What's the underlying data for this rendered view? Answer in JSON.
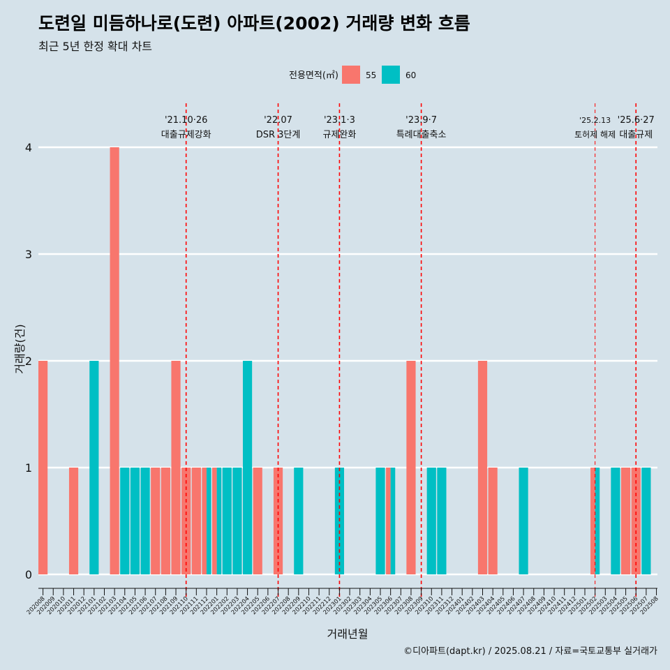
{
  "header": {
    "title": "도련일 미듬하나로(도련) 아파트(2002) 거래량 변화 흐름",
    "subtitle": "최근 5년 한정 확대 차트"
  },
  "footer": {
    "caption": "©디아파트(dapt.kr) / 2025.08.21 / 자료=국토교통부 실거래가"
  },
  "colors": {
    "background": "#d5e2ea",
    "area55": "#f8766d",
    "area60": "#00bfc4",
    "event_line": "#ff0000",
    "grid": "#ffffff"
  },
  "chart_data": {
    "type": "bar",
    "title": "도련일 미듬하나로(도련) 아파트(2002) 거래량 변화 흐름",
    "xlabel": "거래년월",
    "ylabel": "거래량(건)",
    "ylim": [
      0,
      4
    ],
    "yticks": [
      "0",
      "1",
      "2",
      "3",
      "4"
    ],
    "legend": {
      "title": "전용면적(㎡)",
      "position": "top",
      "entries": [
        "55",
        "60"
      ]
    },
    "categories": [
      "202008",
      "202009",
      "202010",
      "202011",
      "202012",
      "202101",
      "202102",
      "202103",
      "202104",
      "202105",
      "202106",
      "202107",
      "202108",
      "202109",
      "202110",
      "202111",
      "202112",
      "202201",
      "202202",
      "202203",
      "202204",
      "202205",
      "202206",
      "202207",
      "202208",
      "202209",
      "202210",
      "202211",
      "202212",
      "202301",
      "202302",
      "202303",
      "202304",
      "202305",
      "202306",
      "202307",
      "202308",
      "202309",
      "202310",
      "202311",
      "202312",
      "202401",
      "202402",
      "202403",
      "202404",
      "202405",
      "202406",
      "202407",
      "202408",
      "202409",
      "202410",
      "202411",
      "202412",
      "202501",
      "202502",
      "202503",
      "202504",
      "202505",
      "202506",
      "202507",
      "202508"
    ],
    "series": [
      {
        "name": "55",
        "values": [
          2,
          0,
          0,
          1,
          0,
          0,
          0,
          4,
          0,
          0,
          0,
          1,
          1,
          2,
          1,
          1,
          1,
          1,
          0,
          0,
          0,
          1,
          0,
          1,
          0,
          0,
          0,
          0,
          0,
          0,
          0,
          0,
          0,
          0,
          1,
          0,
          2,
          0,
          0,
          0,
          0,
          0,
          0,
          2,
          1,
          0,
          0,
          0,
          0,
          0,
          0,
          0,
          0,
          0,
          1,
          0,
          0,
          1,
          1,
          0,
          0
        ]
      },
      {
        "name": "60",
        "values": [
          0,
          0,
          0,
          0,
          0,
          2,
          0,
          0,
          1,
          1,
          1,
          0,
          0,
          0,
          0,
          0,
          1,
          1,
          1,
          1,
          2,
          0,
          0,
          0,
          0,
          1,
          0,
          0,
          0,
          1,
          0,
          0,
          0,
          1,
          1,
          0,
          0,
          0,
          1,
          1,
          0,
          0,
          0,
          0,
          0,
          0,
          0,
          1,
          0,
          0,
          0,
          0,
          0,
          0,
          1,
          0,
          1,
          0,
          0,
          1,
          0
        ]
      }
    ],
    "events": [
      {
        "date": "'21.10·26",
        "label": "대출규제강화",
        "position_month": "202110",
        "style": "normal"
      },
      {
        "date": "'22.07",
        "label": "DSR 3단계",
        "position_month": "202207",
        "style": "normal"
      },
      {
        "date": "'23.1·3",
        "label": "규제완화",
        "position_month": "202301",
        "style": "normal"
      },
      {
        "date": "'23.9·7",
        "label": "특례대출축소",
        "position_month": "202309",
        "style": "normal"
      },
      {
        "date": "'25.2.13",
        "label": "토허제 해제",
        "position_month": "202502",
        "style": "small"
      },
      {
        "date": "'25.6·27",
        "label": "대출규제",
        "position_month": "202506",
        "style": "normal"
      }
    ]
  }
}
